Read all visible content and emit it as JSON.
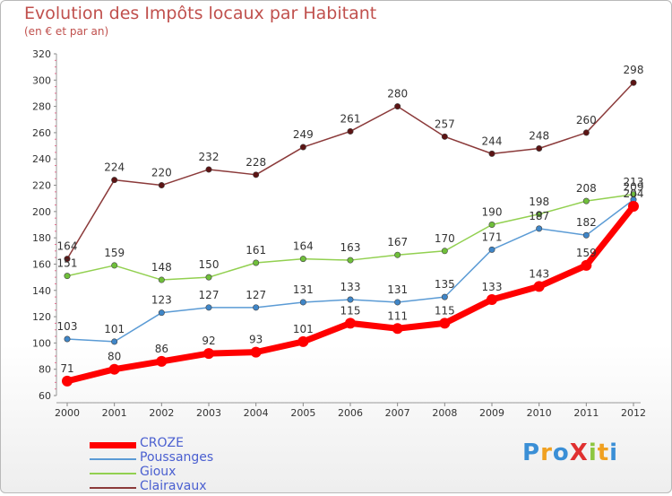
{
  "page": {
    "title": "Evolution des Impôts locaux par Habitant",
    "subtitle": "(en € et par an)",
    "logo": "ProXiti",
    "logo_letters": [
      {
        "ch": "P",
        "color": "#3a8fd6"
      },
      {
        "ch": "r",
        "color": "#f0a020"
      },
      {
        "ch": "o",
        "color": "#3a8fd6"
      },
      {
        "ch": "X",
        "color": "#e03030"
      },
      {
        "ch": "i",
        "color": "#8cc63f"
      },
      {
        "ch": "t",
        "color": "#f0a020"
      },
      {
        "ch": "i",
        "color": "#3a8fd6"
      }
    ]
  },
  "chart_data": {
    "type": "line",
    "title": "Evolution des Impôts locaux par Habitant",
    "subtitle": "(en € et par an)",
    "x": [
      "2000",
      "2001",
      "2002",
      "2003",
      "2004",
      "2005",
      "2006",
      "2007",
      "2008",
      "2009",
      "2010",
      "2011",
      "2012"
    ],
    "ylim": [
      60,
      320
    ],
    "yticks": [
      60,
      80,
      100,
      120,
      140,
      160,
      180,
      200,
      220,
      240,
      260,
      280,
      300,
      320
    ],
    "grid": false,
    "legend": "bottom-left",
    "series": [
      {
        "name": "CROZE",
        "color": "#ff0000",
        "marker": "#ff0000",
        "width": 7,
        "labelColor": "#333333",
        "labels": true,
        "values": [
          71,
          80,
          86,
          92,
          93,
          101,
          115,
          111,
          115,
          133,
          143,
          159,
          204
        ]
      },
      {
        "name": "Poussanges",
        "color": "#5b9bd5",
        "marker": "#3f86c8",
        "width": 1.5,
        "labelColor": "#333333",
        "labels": true,
        "values": [
          103,
          101,
          123,
          127,
          127,
          131,
          133,
          131,
          135,
          171,
          187,
          182,
          209
        ]
      },
      {
        "name": "Gioux",
        "color": "#92d050",
        "marker": "#6fbf3a",
        "width": 1.5,
        "labelColor": "#333333",
        "labels": true,
        "values": [
          151,
          159,
          148,
          150,
          161,
          164,
          163,
          167,
          170,
          190,
          198,
          208,
          213
        ]
      },
      {
        "name": "Clairavaux",
        "color": "#8b3a3a",
        "marker": "#5c1414",
        "width": 1.5,
        "labelColor": "#333333",
        "labels": true,
        "values": [
          164,
          224,
          220,
          232,
          228,
          249,
          261,
          280,
          257,
          244,
          248,
          260,
          298
        ]
      }
    ]
  }
}
